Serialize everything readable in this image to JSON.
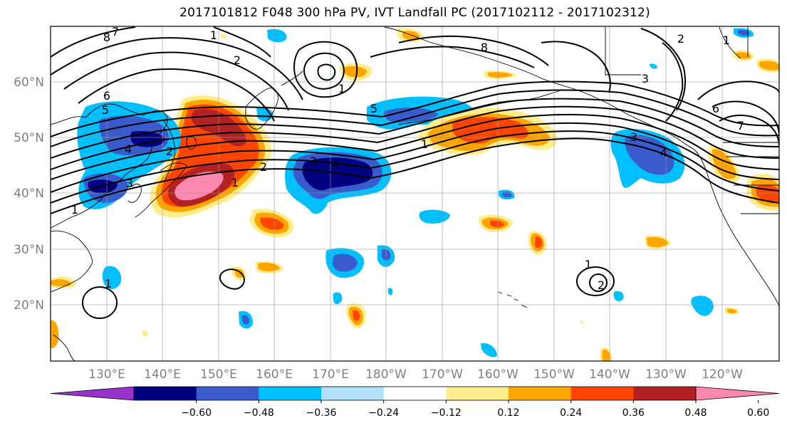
{
  "title": "2017101812 F048 300 hPa PV, IVT Landfall PC (2017102112 - 2017102312)",
  "map": {
    "lon_labels": [
      "130°E",
      "140°E",
      "150°E",
      "160°E",
      "170°E",
      "180°W",
      "170°W",
      "160°W",
      "150°W",
      "140°W",
      "130°W",
      "120°W"
    ],
    "lat_labels": [
      "60°N",
      "50°N",
      "40°N",
      "30°N",
      "20°N"
    ],
    "contour_labels": [
      "8",
      "7",
      "6",
      "5",
      "4",
      "3",
      "2",
      "1",
      "1",
      "2",
      "1",
      "1",
      "1",
      "2",
      "3",
      "4",
      "5",
      "6",
      "7",
      "8",
      "1",
      "2",
      "3",
      "4",
      "1",
      "3",
      "2",
      "1"
    ]
  },
  "colorbar": {
    "tick_labels": [
      "−0.60",
      "−0.48",
      "−0.36",
      "−0.24",
      "−0.12",
      "0.12",
      "0.24",
      "0.36",
      "0.48",
      "0.60"
    ],
    "colors": [
      "#9932cc",
      "#000080",
      "#3a5bcc",
      "#00bfff",
      "#b0e0fa",
      "#ffffff",
      "#ffec8b",
      "#ffa500",
      "#ff4500",
      "#b22222",
      "#ff88b0"
    ]
  },
  "colors": {
    "neg_3": "#000080",
    "neg_2": "#3a5bcc",
    "neg_1": "#00bfff",
    "neg_0": "#b0e0fa",
    "pos_0": "#ffec8b",
    "pos_1": "#ffa500",
    "pos_2": "#ff4500",
    "pos_3": "#b22222",
    "pos_4": "#ff88b0"
  }
}
